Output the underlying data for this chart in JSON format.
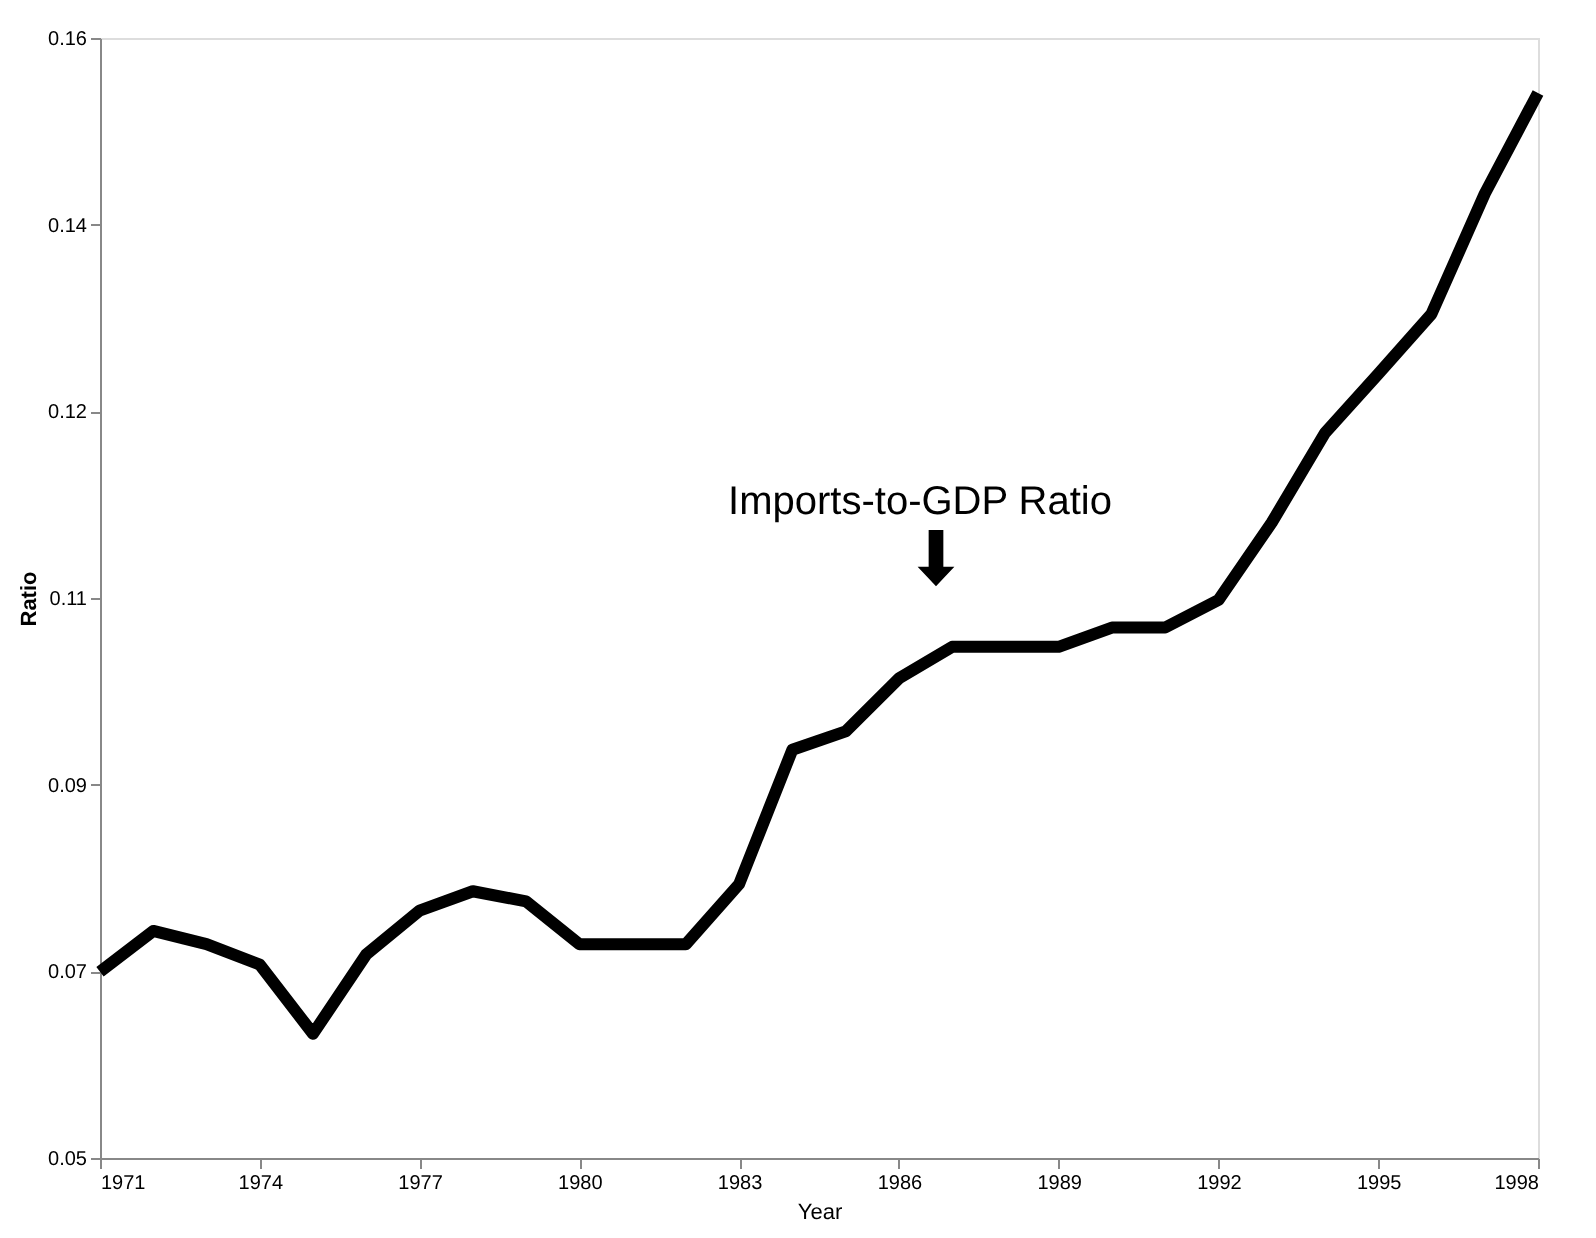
{
  "chart_data": {
    "type": "line",
    "xlabel": "Year",
    "ylabel": "Ratio",
    "x": [
      1971,
      1972,
      1973,
      1974,
      1975,
      1976,
      1977,
      1978,
      1979,
      1980,
      1981,
      1982,
      1983,
      1984,
      1985,
      1986,
      1987,
      1988,
      1989,
      1990,
      1991,
      1992,
      1993,
      1994,
      1995,
      1996,
      1997,
      1998
    ],
    "series": [
      {
        "color": "#000000",
        "values": [
          0.0683,
          0.0723,
          0.071,
          0.069,
          0.0622,
          0.07,
          0.0743,
          0.0762,
          0.0752,
          0.071,
          0.071,
          0.071,
          0.0769,
          0.0901,
          0.0919,
          0.0971,
          0.1002,
          0.1002,
          0.1002,
          0.1021,
          0.1021,
          0.1048,
          0.1124,
          0.1212,
          0.127,
          0.1329,
          0.1447,
          0.1546
        ]
      }
    ],
    "xlim": [
      1971,
      1998
    ],
    "xticks": [
      1971,
      1974,
      1977,
      1980,
      1983,
      1986,
      1989,
      1992,
      1995,
      1998
    ],
    "ylim": [
      0.05,
      0.16
    ],
    "yticks": [
      0.05,
      {
        "value": 0.06833,
        "label": "0.07"
      },
      {
        "value": 0.08667,
        "label": "0.09"
      },
      {
        "value": 0.105,
        "label": "0.11"
      },
      {
        "value": 0.12333,
        "label": "0.12"
      },
      {
        "value": 0.14167,
        "label": "0.14"
      },
      0.16
    ],
    "annotations": [
      "Imports-to-GDP Ratio"
    ],
    "grid": false,
    "marker": "none",
    "line_style": "solid"
  }
}
